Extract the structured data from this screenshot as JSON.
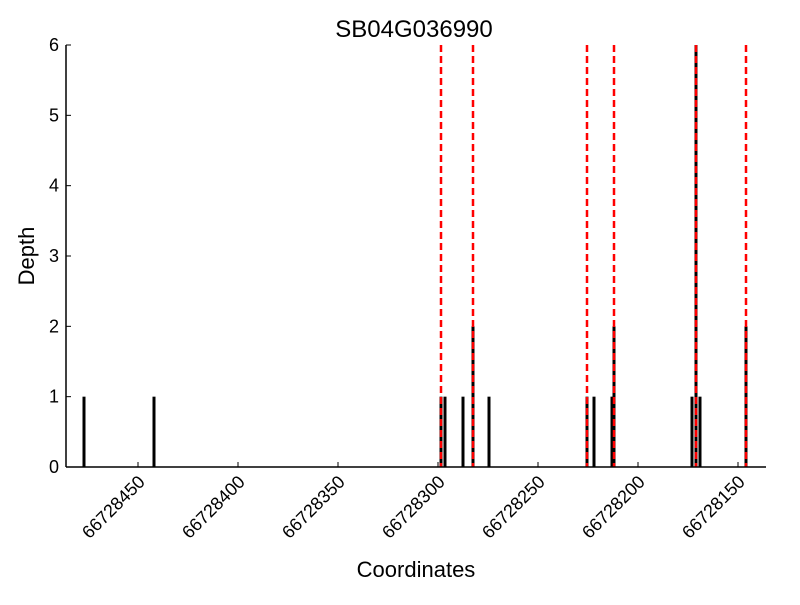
{
  "chart_data": {
    "type": "bar",
    "title": "SB04G036990",
    "xlabel": "Coordinates",
    "ylabel": "Depth",
    "xlim": [
      66728486,
      66728136
    ],
    "ylim": [
      0,
      6
    ],
    "x_reversed": true,
    "grid": false,
    "xticks": [
      66728450,
      66728400,
      66728350,
      66728300,
      66728250,
      66728200,
      66728150
    ],
    "xtick_labels": [
      "66728450",
      "66728400",
      "66728350",
      "66728300",
      "66728250",
      "66728200",
      "66728150"
    ],
    "yticks": [
      0,
      1,
      2,
      3,
      4,
      5,
      6
    ],
    "ytick_labels": [
      "0",
      "1",
      "2",
      "3",
      "4",
      "5",
      "6"
    ],
    "bars": [
      {
        "x": 66728477,
        "depth": 1
      },
      {
        "x": 66728442,
        "depth": 1
      },
      {
        "x": 66728298.5,
        "depth": 1
      },
      {
        "x": 66728296.5,
        "depth": 1
      },
      {
        "x": 66728287.5,
        "depth": 1
      },
      {
        "x": 66728282.5,
        "depth": 2
      },
      {
        "x": 66728274.5,
        "depth": 1
      },
      {
        "x": 66728225.5,
        "depth": 1
      },
      {
        "x": 66728222,
        "depth": 1
      },
      {
        "x": 66728213,
        "depth": 1
      },
      {
        "x": 66728212,
        "depth": 2
      },
      {
        "x": 66728173,
        "depth": 1
      },
      {
        "x": 66728171,
        "depth": 6
      },
      {
        "x": 66728169,
        "depth": 1
      },
      {
        "x": 66728146,
        "depth": 2
      }
    ],
    "vlines": [
      66728298.5,
      66728282.5,
      66728225.5,
      66728212,
      66728171,
      66728146
    ],
    "bar_color": "#000000",
    "vline_color": "#ff0000"
  }
}
